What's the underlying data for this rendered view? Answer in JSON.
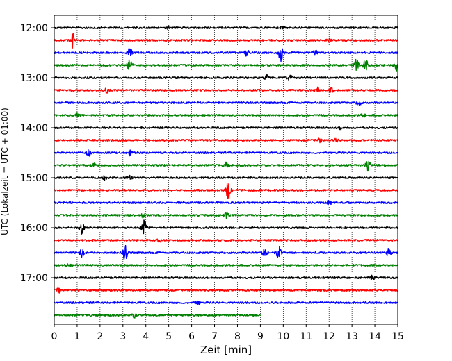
{
  "chart_data": {
    "type": "line",
    "title": "",
    "xlabel": "Zeit  [min]",
    "ylabel": "UTC (Lokalzeit = UTC + 01:00)",
    "xlim": [
      0,
      15
    ],
    "x_ticks": [
      "0",
      "1",
      "2",
      "3",
      "4",
      "5",
      "6",
      "7",
      "8",
      "9",
      "10",
      "11",
      "12",
      "13",
      "14",
      "15"
    ],
    "y_tick_labels": [
      "12:00",
      "13:00",
      "14:00",
      "15:00",
      "16:00",
      "17:00"
    ],
    "grid": "vertical dotted",
    "trace_colors": [
      "#000000",
      "#ff0000",
      "#0000ff",
      "#008000"
    ],
    "series": [
      {
        "start": "12:00",
        "end_min": 15,
        "events": [
          [
            5.0,
            0.35
          ],
          [
            10.0,
            0.3
          ]
        ]
      },
      {
        "start": "12:15",
        "end_min": 15,
        "events": [
          [
            0.8,
            1.8
          ],
          [
            12.0,
            0.3
          ]
        ]
      },
      {
        "start": "12:30",
        "end_min": 15,
        "events": [
          [
            3.3,
            1.3
          ],
          [
            8.4,
            0.9
          ],
          [
            9.9,
            2.2
          ],
          [
            11.4,
            0.6
          ]
        ]
      },
      {
        "start": "12:45",
        "end_min": 15,
        "events": [
          [
            3.3,
            1.6
          ],
          [
            13.2,
            1.4
          ],
          [
            13.6,
            1.6
          ],
          [
            14.95,
            1.2
          ]
        ]
      },
      {
        "start": "13:00",
        "end_min": 15,
        "events": [
          [
            9.3,
            0.8
          ],
          [
            10.3,
            0.6
          ]
        ]
      },
      {
        "start": "13:15",
        "end_min": 15,
        "events": [
          [
            2.3,
            0.6
          ],
          [
            11.5,
            0.7
          ],
          [
            12.1,
            0.5
          ]
        ]
      },
      {
        "start": "13:30",
        "end_min": 15,
        "events": [
          [
            13.3,
            0.7
          ]
        ]
      },
      {
        "start": "13:45",
        "end_min": 15,
        "events": [
          [
            1.0,
            0.4
          ],
          [
            13.5,
            0.4
          ]
        ]
      },
      {
        "start": "14:00",
        "end_min": 15,
        "events": [
          [
            12.5,
            0.3
          ]
        ]
      },
      {
        "start": "14:15",
        "end_min": 15,
        "events": [
          [
            11.6,
            0.4
          ],
          [
            12.3,
            0.4
          ]
        ]
      },
      {
        "start": "14:30",
        "end_min": 15,
        "events": [
          [
            1.5,
            0.7
          ],
          [
            3.3,
            0.6
          ]
        ]
      },
      {
        "start": "14:45",
        "end_min": 15,
        "events": [
          [
            1.7,
            0.6
          ],
          [
            7.5,
            0.6
          ],
          [
            13.7,
            1.3
          ]
        ]
      },
      {
        "start": "15:00",
        "end_min": 15,
        "events": [
          [
            2.2,
            0.4
          ],
          [
            3.3,
            0.4
          ]
        ]
      },
      {
        "start": "15:15",
        "end_min": 15,
        "events": [
          [
            7.6,
            2.1
          ]
        ]
      },
      {
        "start": "15:30",
        "end_min": 15,
        "events": [
          [
            12.0,
            0.6
          ]
        ]
      },
      {
        "start": "15:45",
        "end_min": 15,
        "events": [
          [
            7.5,
            0.8
          ],
          [
            3.9,
            0.6
          ]
        ]
      },
      {
        "start": "16:00",
        "end_min": 15,
        "events": [
          [
            1.2,
            1.6
          ],
          [
            3.9,
            3.0
          ]
        ]
      },
      {
        "start": "16:15",
        "end_min": 15,
        "events": [
          [
            4.6,
            0.4
          ]
        ]
      },
      {
        "start": "16:30",
        "end_min": 15,
        "events": [
          [
            1.2,
            0.9
          ],
          [
            3.1,
            2.2
          ],
          [
            9.2,
            1.2
          ],
          [
            9.8,
            1.6
          ],
          [
            14.6,
            1.0
          ]
        ]
      },
      {
        "start": "16:45",
        "end_min": 15,
        "events": [
          [
            0.6,
            0.3
          ]
        ]
      },
      {
        "start": "17:00",
        "end_min": 15,
        "events": [
          [
            13.9,
            0.5
          ]
        ]
      },
      {
        "start": "17:15",
        "end_min": 15,
        "events": [
          [
            0.2,
            0.6
          ]
        ]
      },
      {
        "start": "17:30",
        "end_min": 15,
        "events": [
          [
            6.3,
            0.4
          ]
        ]
      },
      {
        "start": "17:45",
        "end_min": 9,
        "events": [
          [
            3.5,
            0.5
          ]
        ]
      }
    ]
  }
}
